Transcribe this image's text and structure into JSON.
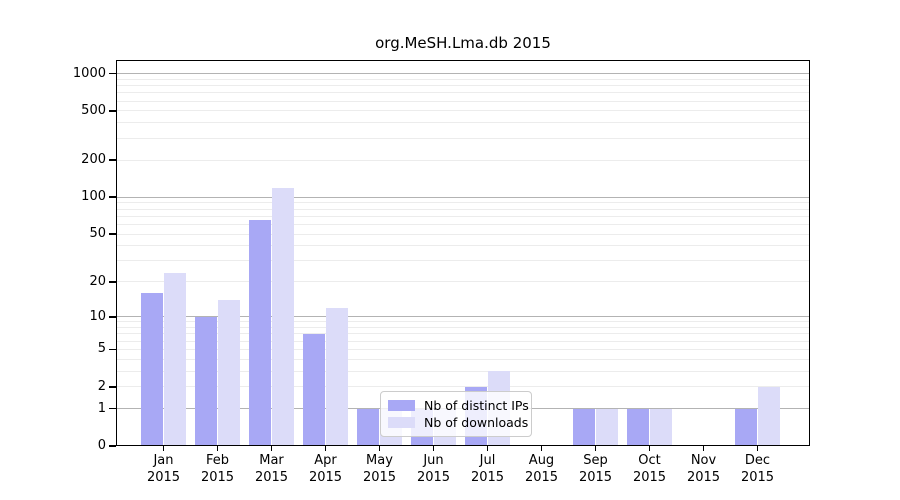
{
  "chart_data": {
    "type": "bar",
    "title": "org.MeSH.Lma.db 2015",
    "categories": [
      "Jan",
      "Feb",
      "Mar",
      "Apr",
      "May",
      "Jun",
      "Jul",
      "Aug",
      "Sep",
      "Oct",
      "Nov",
      "Dec"
    ],
    "category_year": "2015",
    "series": [
      {
        "name": "Nb of distinct IPs",
        "color": "#a8a8f5",
        "values": [
          16,
          10,
          65,
          7,
          1,
          1,
          2,
          0,
          1,
          1,
          0,
          1
        ]
      },
      {
        "name": "Nb of downloads",
        "color": "#dcdcf9",
        "values": [
          24,
          14,
          120,
          12,
          1,
          1,
          3,
          0,
          1,
          1,
          0,
          2
        ]
      }
    ],
    "y_axis": {
      "scale": "log1p",
      "labeled_ticks": [
        0,
        1,
        2,
        5,
        10,
        20,
        50,
        100,
        200,
        500,
        1000
      ],
      "major_gridlines": [
        1,
        10,
        100,
        1000
      ],
      "minor_gridlines": [
        2,
        3,
        4,
        5,
        6,
        7,
        8,
        9,
        20,
        30,
        40,
        50,
        60,
        70,
        80,
        90,
        200,
        300,
        400,
        500,
        600,
        700,
        800,
        900
      ],
      "range": [
        0,
        1000
      ]
    },
    "legend": {
      "position": "inside-bottom-center"
    },
    "colors": {
      "major_grid": "#b3b3b3",
      "minor_grid": "#ececec",
      "axis": "#000000",
      "background": "#ffffff"
    },
    "grid": "on"
  }
}
